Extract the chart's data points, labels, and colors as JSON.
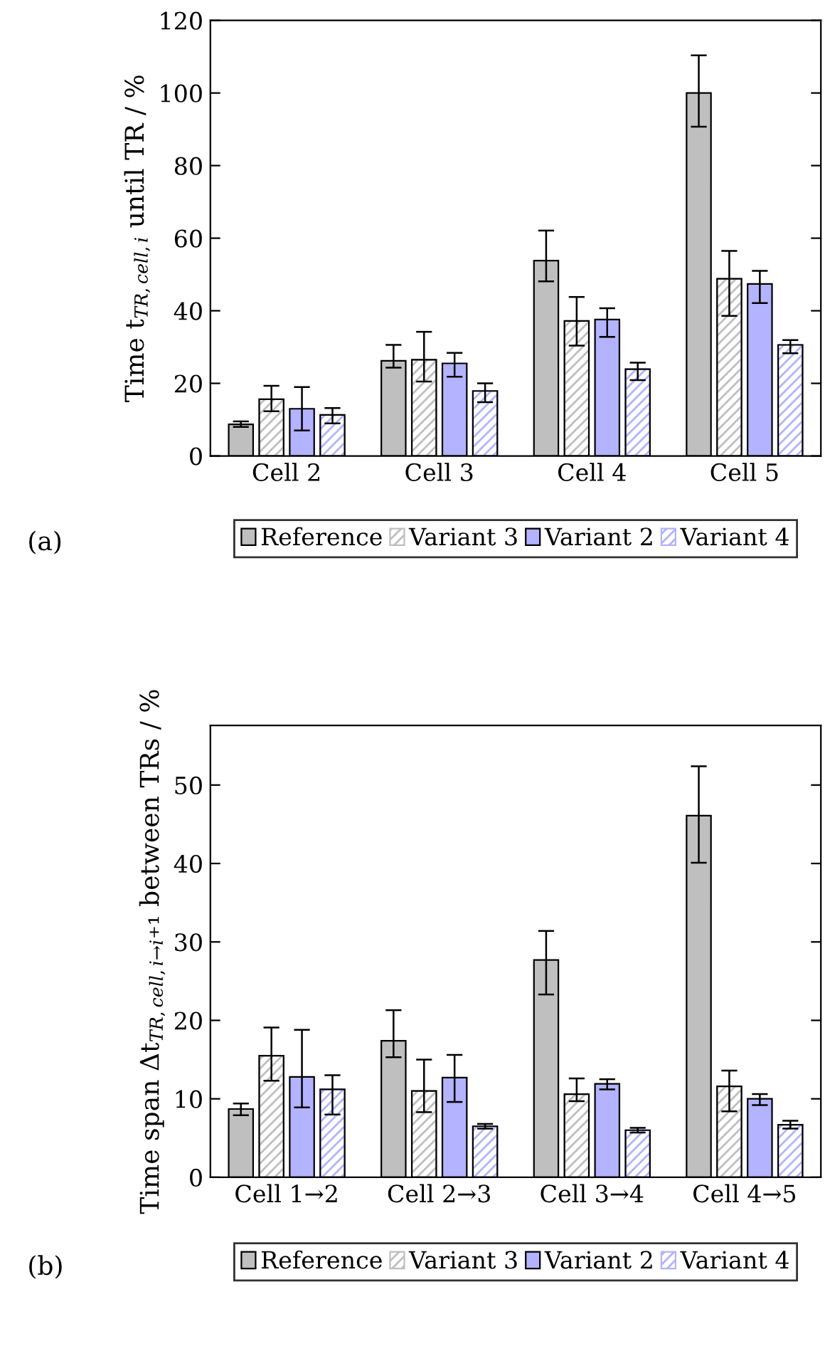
{
  "chart_data": [
    {
      "type": "bar",
      "ylabel": "Time t$_{TR,cell,i}$ until TR / %",
      "categories": [
        "Cell 2",
        "Cell 3",
        "Cell 4",
        "Cell 5"
      ],
      "ylim": [
        0,
        120
      ],
      "yticks": [
        0,
        20,
        40,
        60,
        80,
        100,
        120
      ],
      "legend": "bottom",
      "annotations": [
        "(a)"
      ],
      "series": [
        {
          "name": "Reference",
          "color": "#bfbfbf",
          "values": [
            8.7,
            26.2,
            53.8,
            100
          ],
          "errors": [
            [
              8.0,
              9.5
            ],
            [
              24.3,
              30.6
            ],
            [
              48.1,
              62.1
            ],
            [
              90.7,
              110.4
            ]
          ]
        },
        {
          "name": "Variant 3",
          "color": "#bfbfbf",
          "values": [
            15.6,
            26.5,
            37.2,
            48.8
          ],
          "errors": [
            [
              12.3,
              19.3
            ],
            [
              20.5,
              34.2
            ],
            [
              30.4,
              43.8
            ],
            [
              38.6,
              56.5
            ]
          ]
        },
        {
          "name": "Variant 2",
          "color": "#b3b3ff",
          "values": [
            13.0,
            25.5,
            37.6,
            47.4
          ],
          "errors": [
            [
              7.0,
              19.0
            ],
            [
              21.8,
              28.4
            ],
            [
              32.8,
              40.7
            ],
            [
              42.1,
              51.0
            ]
          ]
        },
        {
          "name": "Variant 4",
          "color": "#b3b3ff",
          "values": [
            11.3,
            17.9,
            23.9,
            30.6
          ],
          "errors": [
            [
              9.0,
              13.2
            ],
            [
              14.8,
              20.0
            ],
            [
              20.9,
              25.7
            ],
            [
              28.3,
              31.9
            ]
          ]
        }
      ]
    },
    {
      "type": "bar",
      "ylabel": "Time span Δt$_{TR,cell,i→i}$₊₁ between TRs / %",
      "categories": [
        "Cell 1→2",
        "Cell 2→3",
        "Cell 3→4",
        "Cell 4→5"
      ],
      "ylim": [
        0,
        57.6
      ],
      "yticks": [
        0,
        10,
        20,
        30,
        40,
        50
      ],
      "legend": "bottom",
      "annotations": [
        "(b)"
      ],
      "series": [
        {
          "name": "Reference",
          "color": "#bfbfbf",
          "values": [
            8.7,
            17.4,
            27.7,
            46.1
          ],
          "errors": [
            [
              7.9,
              9.4
            ],
            [
              15.3,
              21.3
            ],
            [
              23.3,
              31.4
            ],
            [
              40.1,
              52.4
            ]
          ]
        },
        {
          "name": "Variant 3",
          "color": "#bfbfbf",
          "values": [
            15.5,
            11.0,
            10.6,
            11.6
          ],
          "errors": [
            [
              12.3,
              19.1
            ],
            [
              8.3,
              15.0
            ],
            [
              9.7,
              12.6
            ],
            [
              8.4,
              13.6
            ]
          ]
        },
        {
          "name": "Variant 2",
          "color": "#b3b3ff",
          "values": [
            12.8,
            12.7,
            11.9,
            10.0
          ],
          "errors": [
            [
              8.9,
              18.8
            ],
            [
              9.6,
              15.6
            ],
            [
              11.2,
              12.5
            ],
            [
              9.2,
              10.6
            ]
          ]
        },
        {
          "name": "Variant 4",
          "color": "#b3b3ff",
          "values": [
            11.2,
            6.5,
            6.0,
            6.7
          ],
          "errors": [
            [
              8.0,
              13.0
            ],
            [
              6.2,
              6.8
            ],
            [
              5.7,
              6.3
            ],
            [
              6.2,
              7.2
            ]
          ]
        }
      ]
    }
  ]
}
